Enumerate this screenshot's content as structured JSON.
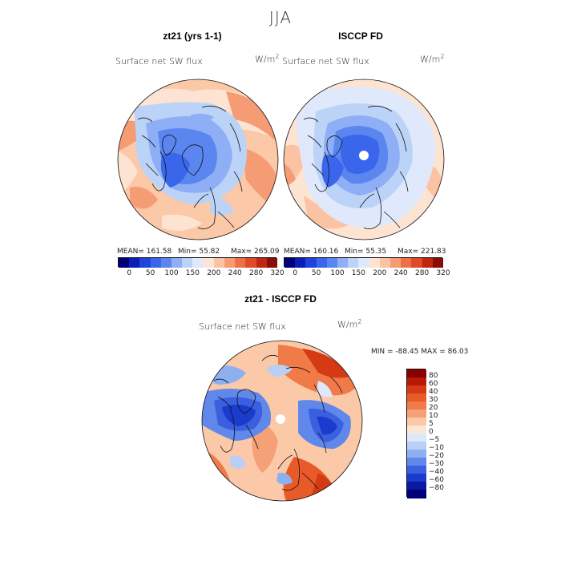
{
  "figure": {
    "title": "JJA"
  },
  "panels": [
    {
      "title": "zt21 (yrs 1-1)",
      "variable": "Surface net SW flux",
      "unit_base": "W/m",
      "unit_exp": "2",
      "mean_label": "MEAN= 161.58",
      "min_label": "Min=   55.82",
      "max_label": "Max= 265.09"
    },
    {
      "title": "ISCCP FD",
      "variable": "Surface net SW flux",
      "unit_base": "W/m",
      "unit_exp": "2",
      "mean_label": "MEAN= 160.16",
      "min_label": "Min=   55.35",
      "max_label": "Max= 221.83"
    },
    {
      "title": "zt21 - ISCCP FD",
      "variable": "Surface net SW flux",
      "unit_base": "W/m",
      "unit_exp": "2",
      "minmax_label": "MIN = -88.45 MAX =   86.03"
    }
  ],
  "colorbars": {
    "abs": {
      "ticks": [
        "0",
        "50",
        "100",
        "150",
        "200",
        "240",
        "280",
        "320"
      ],
      "colors": [
        "#00007a",
        "#0a1fb8",
        "#1e44dc",
        "#3a66ec",
        "#5b86f0",
        "#8eaef5",
        "#bcd3f8",
        "#dfe9fb",
        "#fde4d2",
        "#fbc3a3",
        "#f59c74",
        "#ee7048",
        "#e04a26",
        "#c12610",
        "#8a0c06"
      ]
    },
    "diff": {
      "labels": [
        "80",
        "60",
        "40",
        "30",
        "20",
        "10",
        "5",
        "0",
        "−5",
        "−10",
        "−20",
        "−30",
        "−40",
        "−60",
        "−80"
      ],
      "colors": [
        "#8a0000",
        "#b81a08",
        "#d63a14",
        "#e85a28",
        "#f07a48",
        "#f6a078",
        "#fbc8a8",
        "#fde6d6",
        "#dce8fb",
        "#b8d0f6",
        "#8cb0f0",
        "#5f88ea",
        "#3a60e0",
        "#1a3ccc",
        "#0a1aa0",
        "#00007a"
      ]
    }
  }
}
